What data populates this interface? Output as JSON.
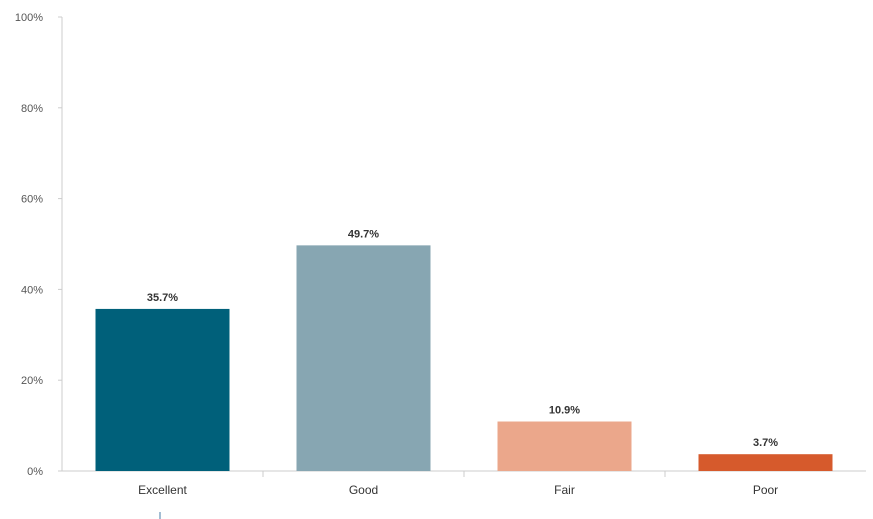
{
  "chart_data": {
    "type": "bar",
    "title": "",
    "xlabel": "",
    "ylabel": "",
    "categories": [
      "Excellent",
      "Good",
      "Fair",
      "Poor"
    ],
    "values": [
      35.7,
      49.7,
      10.9,
      3.7
    ],
    "value_labels": [
      "35.7%",
      "49.7%",
      "10.9%",
      "3.7%"
    ],
    "colors": [
      "#00607a",
      "#87a6b2",
      "#eba78b",
      "#d65a2c"
    ],
    "ylim": [
      0,
      100
    ],
    "yticks": [
      0,
      20,
      40,
      60,
      80,
      100
    ],
    "ytick_labels": [
      "0%",
      "20%",
      "40%",
      "60%",
      "80%",
      "100%"
    ],
    "grid": false,
    "legend": "none"
  }
}
